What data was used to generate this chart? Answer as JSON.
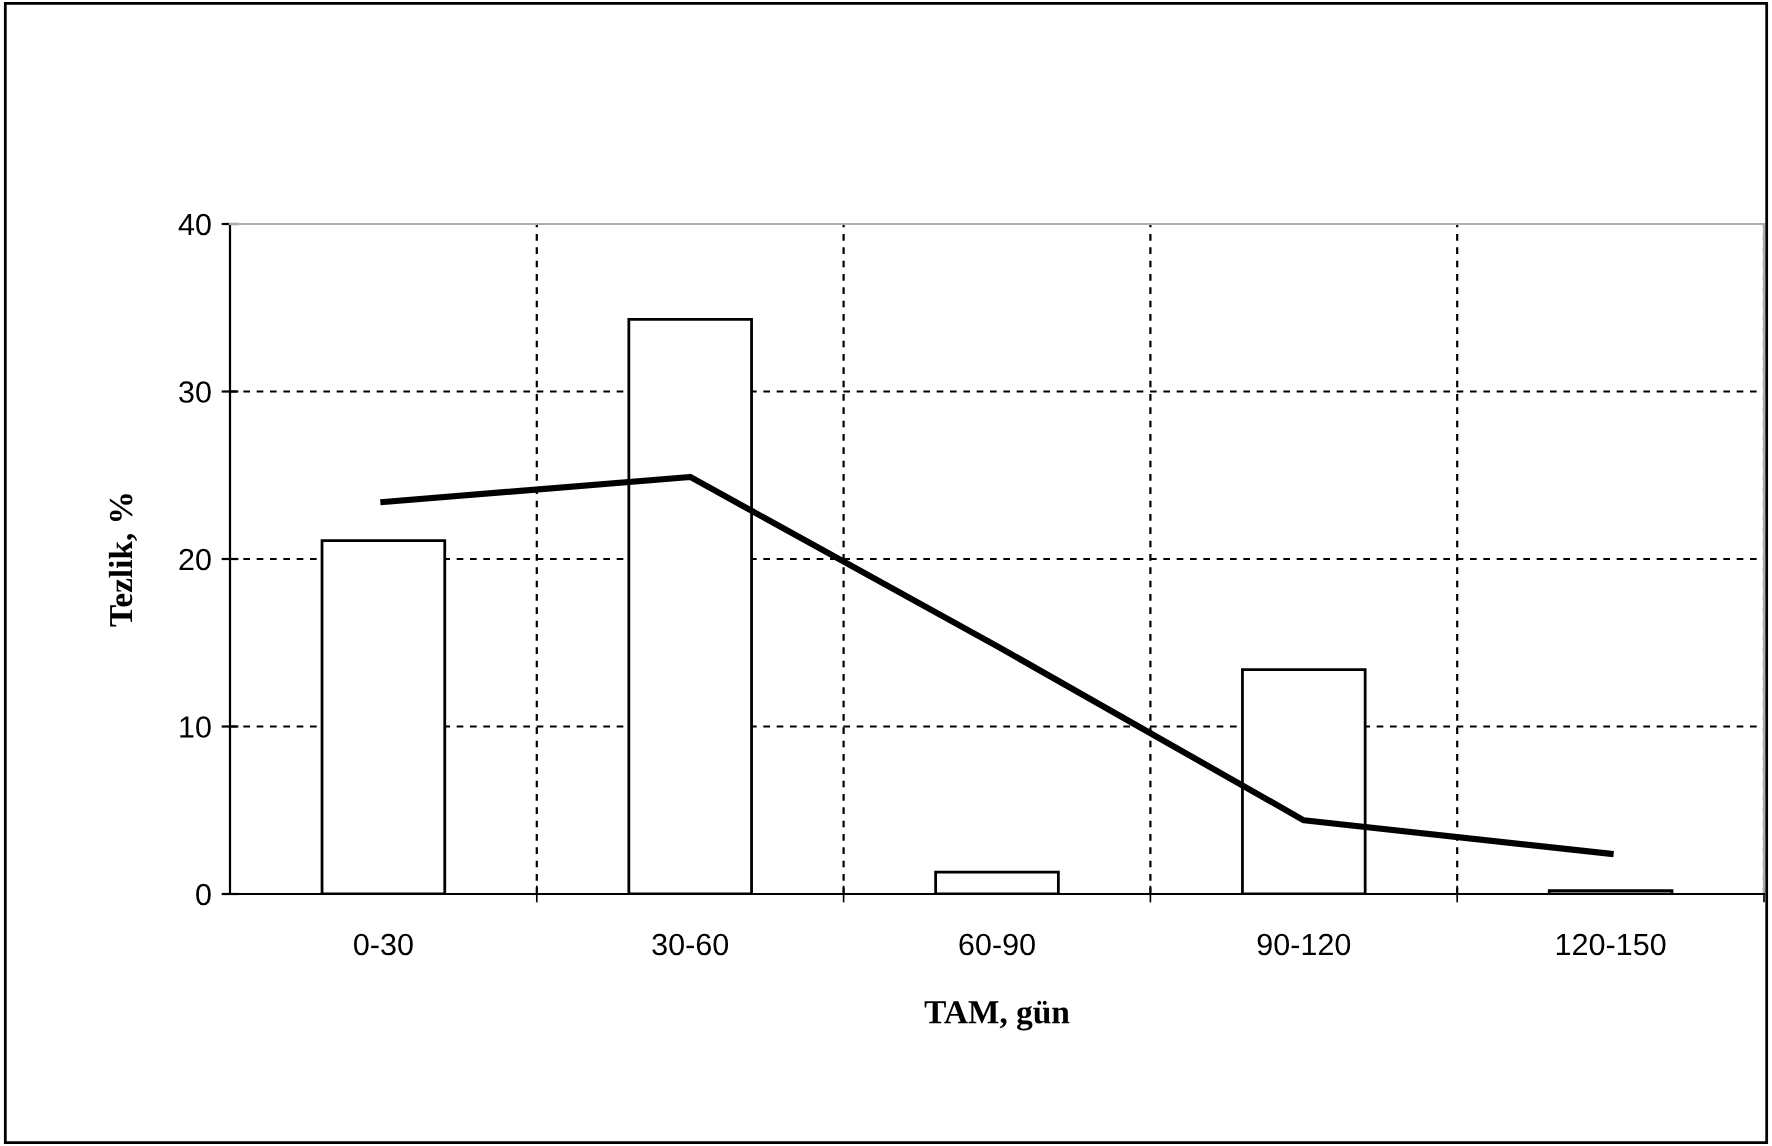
{
  "chart_data": {
    "type": "bar",
    "xlabel": "TAM, gün",
    "ylabel": "Tezlik, %",
    "categories": [
      "0-30",
      "30-60",
      "60-90",
      "90-120",
      "120-150"
    ],
    "series": [
      {
        "color": "#ffffff",
        "values": [
          21.1,
          34.3,
          1.3,
          13.4,
          0.2
        ]
      },
      {
        "type": "line",
        "color": "#000000",
        "values": [
          23.4,
          24.9,
          14.8,
          4.4,
          2.4
        ]
      }
    ],
    "ylim": [
      0,
      40
    ],
    "yticks": [
      0,
      10,
      20,
      30,
      40
    ],
    "grid": true
  }
}
